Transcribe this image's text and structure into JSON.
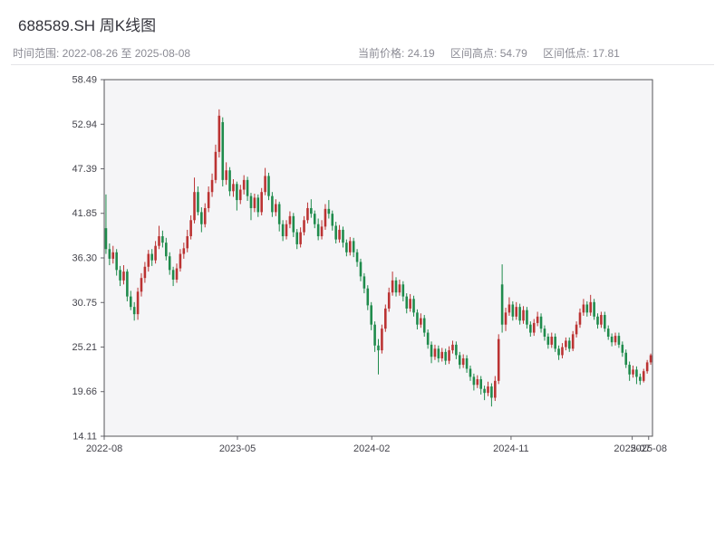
{
  "header": {
    "title": "688589.SH 周K线图",
    "time_range_label": "时间范围: 2022-08-26 至 2025-08-08",
    "current_price_label": "当前价格: 24.19",
    "range_high_label": "区间高点: 54.79",
    "range_low_label": "区间低点: 17.81"
  },
  "chart_data": {
    "type": "candlestick",
    "title": "688589.SH 周K线图",
    "interval": "weekly",
    "time_range": "2022-08-26 to 2025-08-08",
    "current_price": 24.19,
    "range_high": 54.79,
    "range_low": 17.81,
    "ylim": [
      14.11,
      58.49
    ],
    "y_ticks": [
      14.11,
      19.66,
      25.21,
      30.75,
      36.3,
      41.85,
      47.39,
      52.94,
      58.49
    ],
    "y_tick_labels": [
      "14.11",
      "19.66",
      "25.21",
      "30.75",
      "36.30",
      "41.85",
      "47.39",
      "52.94",
      "58.49"
    ],
    "x_ticks": [
      {
        "pos": 0.0,
        "label": "2022-08"
      },
      {
        "pos": 0.243,
        "label": "2023-05"
      },
      {
        "pos": 0.488,
        "label": "2024-02"
      },
      {
        "pos": 0.742,
        "label": "2024-11"
      },
      {
        "pos": 0.963,
        "label": "2025-07"
      },
      {
        "pos": 0.993,
        "label": "2025-08"
      }
    ],
    "grid": false,
    "legend": false,
    "plot_bg": "#f5f5f7",
    "border_color": "#55555a",
    "up_color": "#bb3333",
    "down_color": "#1f8b4c",
    "candles": [
      [
        40.0,
        44.2,
        36.8,
        37.4
      ],
      [
        37.4,
        38.1,
        35.4,
        36.2
      ],
      [
        36.2,
        37.8,
        35.6,
        37.0
      ],
      [
        37.0,
        37.4,
        34.1,
        34.8
      ],
      [
        34.8,
        35.3,
        32.8,
        33.5
      ],
      [
        33.5,
        35.4,
        33.0,
        34.6
      ],
      [
        34.6,
        34.9,
        30.9,
        31.5
      ],
      [
        31.5,
        32.2,
        29.8,
        30.2
      ],
      [
        30.2,
        30.8,
        28.5,
        29.3
      ],
      [
        29.3,
        32.6,
        28.6,
        32.1
      ],
      [
        32.1,
        34.4,
        31.5,
        33.8
      ],
      [
        33.8,
        35.8,
        33.2,
        35.2
      ],
      [
        35.2,
        37.3,
        34.6,
        36.8
      ],
      [
        36.8,
        37.4,
        35.3,
        36.0
      ],
      [
        36.0,
        38.4,
        35.6,
        37.8
      ],
      [
        37.8,
        40.3,
        37.4,
        39.0
      ],
      [
        39.0,
        39.7,
        37.6,
        38.2
      ],
      [
        38.2,
        38.8,
        36.0,
        36.5
      ],
      [
        36.5,
        37.0,
        34.2,
        34.8
      ],
      [
        34.8,
        35.2,
        32.8,
        33.6
      ],
      [
        33.6,
        35.6,
        33.2,
        35.0
      ],
      [
        35.0,
        37.4,
        34.6,
        36.8
      ],
      [
        36.8,
        38.2,
        36.2,
        37.5
      ],
      [
        37.5,
        39.8,
        37.0,
        39.0
      ],
      [
        39.0,
        41.6,
        38.6,
        41.0
      ],
      [
        41.0,
        46.3,
        40.6,
        44.5
      ],
      [
        44.5,
        45.2,
        41.6,
        42.0
      ],
      [
        42.0,
        42.6,
        39.5,
        40.5
      ],
      [
        40.5,
        43.1,
        40.1,
        42.5
      ],
      [
        42.5,
        45.2,
        42.0,
        44.5
      ],
      [
        44.5,
        46.8,
        43.9,
        46.0
      ],
      [
        46.0,
        50.4,
        45.6,
        49.5
      ],
      [
        49.5,
        54.79,
        48.8,
        54.0
      ],
      [
        53.2,
        53.8,
        45.2,
        46.0
      ],
      [
        46.0,
        48.2,
        45.4,
        47.2
      ],
      [
        47.2,
        47.6,
        44.0,
        44.6
      ],
      [
        44.6,
        46.1,
        43.9,
        45.5
      ],
      [
        45.5,
        45.8,
        42.2,
        43.5
      ],
      [
        43.5,
        45.4,
        43.0,
        44.8
      ],
      [
        44.8,
        46.6,
        44.2,
        46.0
      ],
      [
        46.0,
        46.4,
        43.4,
        44.0
      ],
      [
        44.0,
        44.4,
        41.0,
        42.5
      ],
      [
        42.5,
        44.3,
        42.0,
        43.8
      ],
      [
        43.8,
        44.2,
        41.4,
        42.0
      ],
      [
        42.0,
        45.0,
        41.6,
        44.5
      ],
      [
        44.5,
        47.5,
        44.1,
        46.5
      ],
      [
        46.5,
        46.9,
        43.5,
        44.0
      ],
      [
        44.0,
        44.5,
        41.4,
        42.0
      ],
      [
        42.0,
        43.6,
        41.5,
        43.0
      ],
      [
        43.0,
        43.3,
        39.6,
        40.5
      ],
      [
        40.5,
        41.0,
        38.4,
        39.0
      ],
      [
        39.0,
        41.0,
        38.6,
        40.5
      ],
      [
        40.5,
        42.1,
        40.0,
        41.5
      ],
      [
        41.5,
        41.9,
        38.9,
        39.5
      ],
      [
        39.5,
        39.9,
        37.4,
        38.0
      ],
      [
        38.0,
        40.1,
        37.6,
        39.5
      ],
      [
        39.5,
        41.5,
        39.1,
        41.0
      ],
      [
        41.0,
        43.2,
        40.6,
        42.5
      ],
      [
        42.5,
        43.6,
        41.3,
        41.8
      ],
      [
        41.8,
        42.2,
        40.0,
        40.5
      ],
      [
        40.5,
        41.2,
        38.5,
        39.0
      ],
      [
        39.0,
        41.0,
        38.6,
        40.2
      ],
      [
        40.2,
        43.0,
        39.8,
        42.4
      ],
      [
        42.4,
        43.5,
        41.2,
        41.8
      ],
      [
        41.8,
        42.2,
        39.7,
        40.3
      ],
      [
        40.3,
        40.8,
        38.1,
        38.6
      ],
      [
        38.6,
        40.4,
        38.2,
        39.8
      ],
      [
        39.8,
        40.2,
        37.6,
        38.2
      ],
      [
        38.2,
        38.6,
        36.5,
        37.0
      ],
      [
        37.0,
        38.9,
        36.6,
        38.4
      ],
      [
        38.4,
        38.8,
        36.4,
        37.0
      ],
      [
        37.0,
        37.4,
        35.2,
        35.8
      ],
      [
        35.8,
        36.2,
        33.4,
        34.0
      ],
      [
        34.0,
        34.4,
        31.9,
        32.5
      ],
      [
        32.5,
        32.9,
        29.8,
        30.4
      ],
      [
        30.4,
        30.8,
        27.3,
        28.0
      ],
      [
        28.0,
        28.4,
        24.6,
        25.4
      ],
      [
        25.4,
        26.2,
        21.8,
        24.8
      ],
      [
        24.8,
        28.0,
        24.4,
        27.5
      ],
      [
        27.5,
        30.5,
        27.1,
        30.0
      ],
      [
        30.0,
        32.6,
        29.6,
        32.0
      ],
      [
        32.0,
        34.6,
        31.6,
        33.5
      ],
      [
        33.5,
        33.9,
        31.5,
        32.0
      ],
      [
        32.0,
        33.6,
        31.6,
        33.0
      ],
      [
        33.0,
        33.4,
        30.9,
        31.5
      ],
      [
        31.5,
        31.9,
        29.4,
        30.0
      ],
      [
        30.0,
        31.8,
        29.6,
        31.2
      ],
      [
        31.2,
        31.6,
        29.0,
        29.5
      ],
      [
        29.5,
        29.9,
        27.4,
        28.0
      ],
      [
        28.0,
        29.4,
        27.6,
        28.8
      ],
      [
        28.8,
        29.2,
        26.5,
        27.0
      ],
      [
        27.0,
        27.4,
        25.0,
        25.5
      ],
      [
        25.5,
        25.9,
        23.2,
        24.0
      ],
      [
        24.0,
        25.5,
        23.6,
        25.0
      ],
      [
        25.0,
        25.4,
        23.3,
        23.8
      ],
      [
        23.8,
        25.1,
        23.4,
        24.6
      ],
      [
        24.6,
        25.0,
        23.0,
        23.5
      ],
      [
        23.5,
        25.3,
        23.1,
        24.8
      ],
      [
        24.8,
        26.0,
        24.4,
        25.5
      ],
      [
        25.5,
        25.9,
        23.7,
        24.2
      ],
      [
        24.2,
        24.6,
        22.5,
        23.0
      ],
      [
        23.0,
        24.3,
        22.6,
        23.8
      ],
      [
        23.8,
        24.2,
        22.0,
        22.5
      ],
      [
        22.5,
        22.9,
        21.0,
        21.5
      ],
      [
        21.5,
        21.9,
        19.8,
        20.5
      ],
      [
        20.5,
        21.7,
        20.1,
        21.2
      ],
      [
        21.2,
        21.6,
        19.3,
        20.0
      ],
      [
        20.0,
        20.4,
        18.6,
        19.5
      ],
      [
        19.5,
        20.9,
        19.1,
        20.3
      ],
      [
        20.3,
        20.7,
        17.81,
        18.9
      ],
      [
        18.9,
        21.6,
        18.5,
        21.0
      ],
      [
        21.0,
        26.8,
        20.6,
        26.2
      ],
      [
        33.0,
        35.5,
        27.0,
        28.0
      ],
      [
        28.0,
        30.1,
        27.2,
        29.5
      ],
      [
        29.5,
        31.4,
        29.1,
        30.5
      ],
      [
        30.5,
        30.9,
        28.5,
        29.0
      ],
      [
        29.0,
        30.8,
        28.6,
        30.2
      ],
      [
        30.2,
        30.6,
        28.0,
        28.5
      ],
      [
        28.5,
        30.3,
        28.1,
        29.8
      ],
      [
        29.8,
        30.2,
        27.5,
        28.0
      ],
      [
        28.0,
        28.4,
        26.5,
        27.0
      ],
      [
        27.0,
        28.7,
        26.6,
        28.2
      ],
      [
        28.2,
        29.6,
        27.8,
        29.0
      ],
      [
        29.0,
        29.4,
        27.0,
        27.5
      ],
      [
        27.5,
        27.9,
        26.0,
        26.5
      ],
      [
        26.5,
        26.9,
        25.0,
        25.5
      ],
      [
        25.5,
        27.0,
        25.1,
        26.5
      ],
      [
        26.5,
        26.9,
        24.6,
        25.0
      ],
      [
        25.0,
        25.4,
        23.6,
        24.2
      ],
      [
        24.2,
        25.7,
        23.8,
        25.2
      ],
      [
        25.2,
        26.4,
        24.8,
        26.0
      ],
      [
        26.0,
        26.4,
        24.6,
        25.0
      ],
      [
        25.0,
        27.2,
        24.7,
        26.8
      ],
      [
        26.8,
        28.4,
        26.4,
        28.0
      ],
      [
        28.0,
        30.0,
        27.6,
        29.5
      ],
      [
        29.5,
        31.2,
        29.1,
        30.5
      ],
      [
        30.5,
        30.9,
        29.0,
        29.5
      ],
      [
        29.5,
        31.7,
        29.1,
        30.8
      ],
      [
        30.8,
        31.2,
        28.6,
        29.0
      ],
      [
        29.0,
        29.4,
        27.5,
        28.0
      ],
      [
        28.0,
        29.6,
        27.6,
        29.2
      ],
      [
        29.2,
        29.6,
        27.1,
        27.5
      ],
      [
        27.5,
        27.9,
        26.1,
        26.5
      ],
      [
        26.5,
        26.9,
        25.3,
        25.8
      ],
      [
        25.8,
        27.0,
        25.4,
        26.6
      ],
      [
        26.6,
        27.0,
        25.1,
        25.5
      ],
      [
        25.5,
        25.9,
        24.0,
        24.5
      ],
      [
        24.5,
        24.9,
        22.6,
        23.0
      ],
      [
        23.0,
        23.4,
        21.0,
        21.8
      ],
      [
        21.8,
        22.9,
        21.4,
        22.4
      ],
      [
        22.4,
        22.8,
        20.6,
        21.5
      ],
      [
        21.5,
        21.9,
        20.5,
        21.0
      ],
      [
        21.0,
        22.5,
        20.8,
        22.2
      ],
      [
        22.2,
        23.6,
        21.9,
        23.3
      ],
      [
        23.3,
        24.4,
        23.0,
        24.19
      ]
    ]
  }
}
